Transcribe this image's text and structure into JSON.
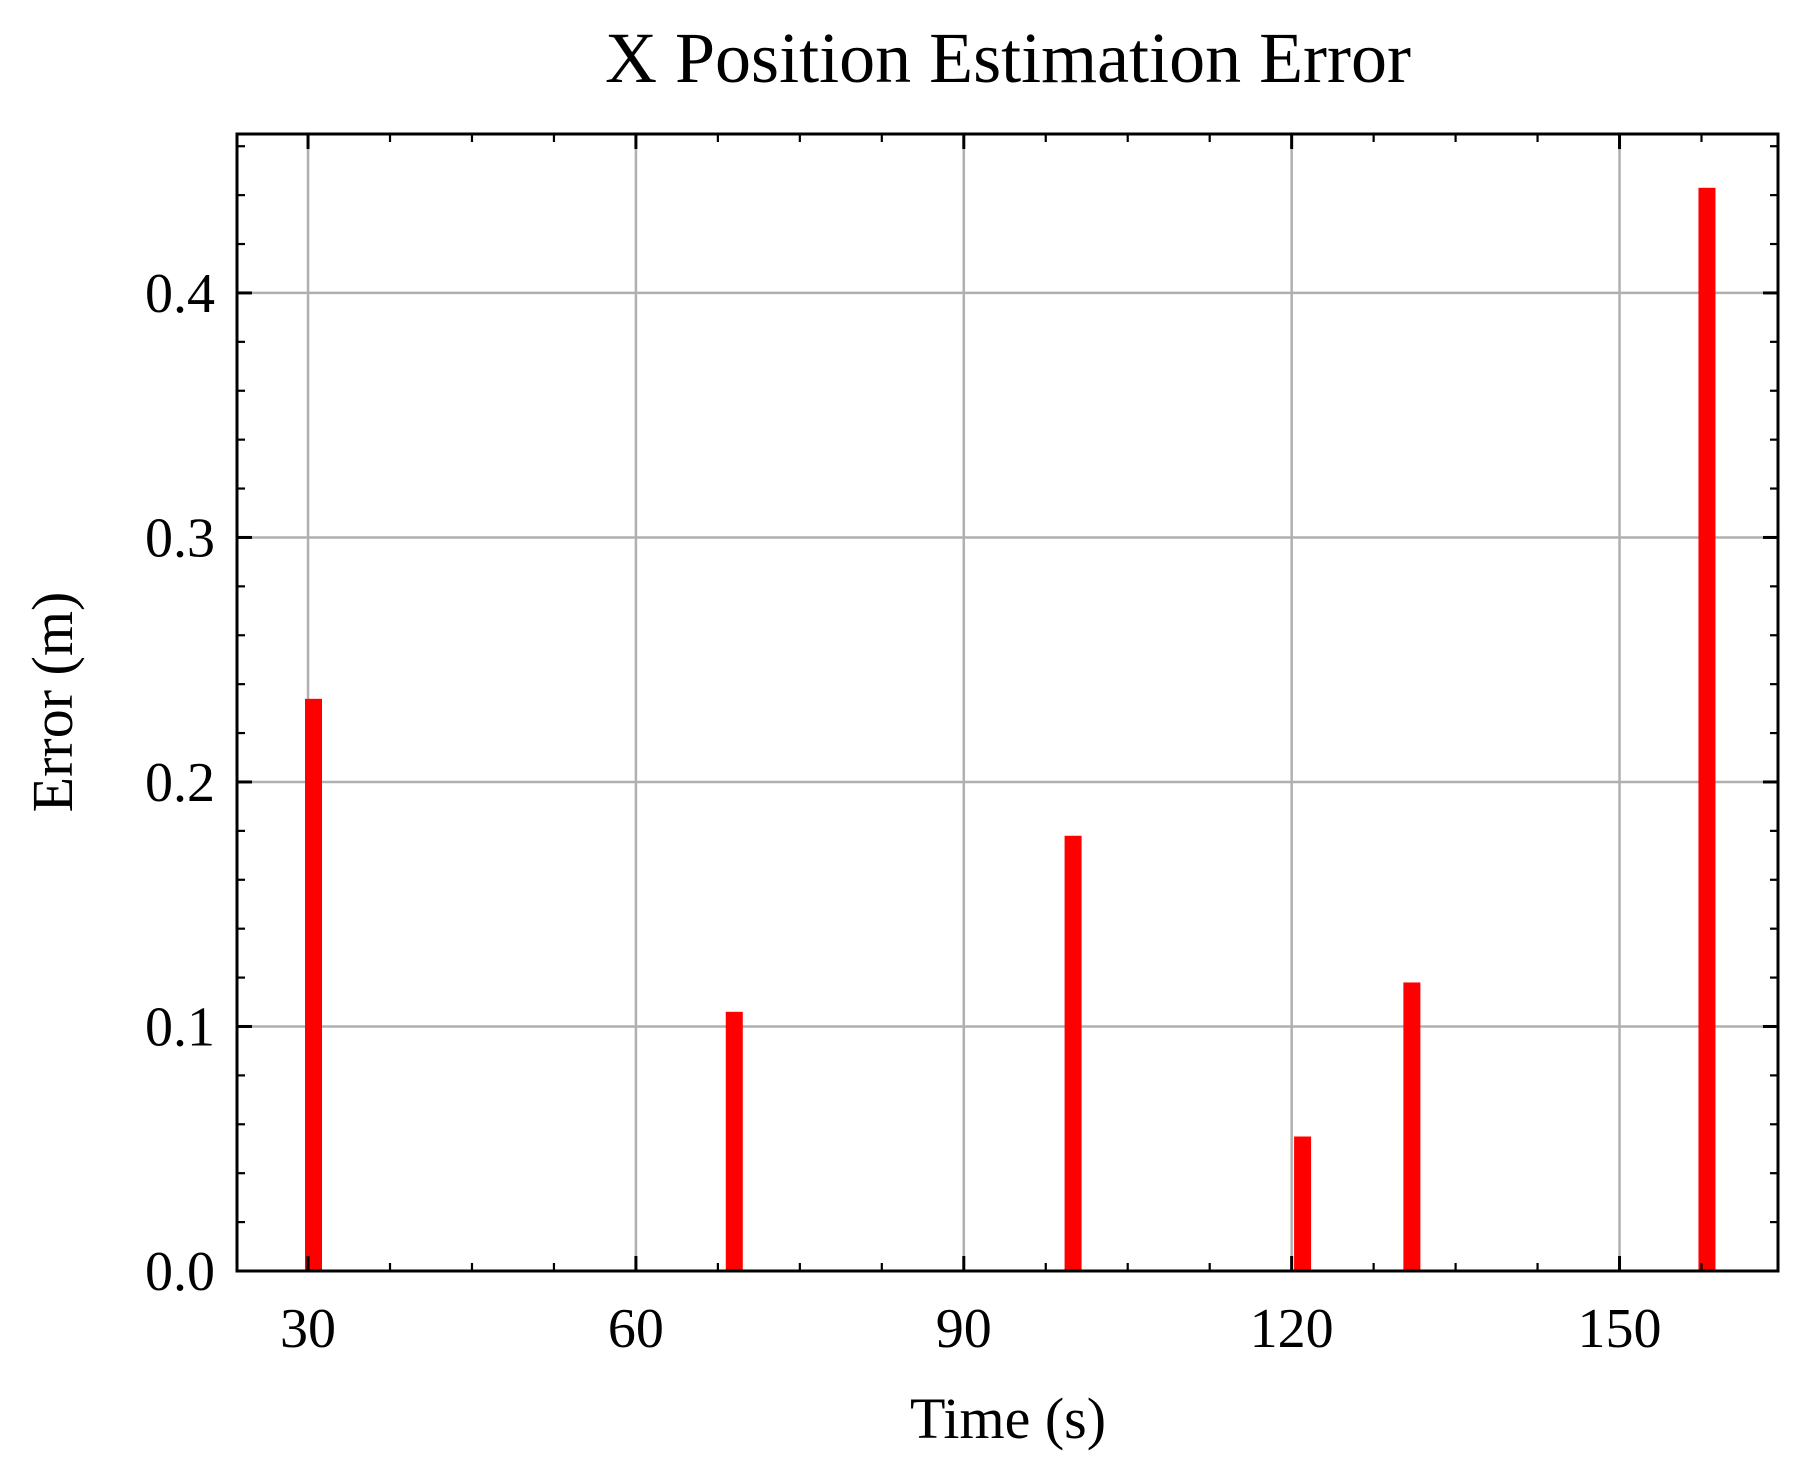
{
  "chart_data": {
    "type": "bar",
    "title": "X Position Estimation Error",
    "xlabel": "Time (s)",
    "ylabel": "Error (m)",
    "x": [
      30.5,
      69.0,
      100.0,
      121.0,
      131.0,
      158.0
    ],
    "values": [
      0.234,
      0.106,
      0.178,
      0.055,
      0.118,
      0.443
    ],
    "xlim": [
      23.5,
      164.5
    ],
    "ylim": [
      0,
      0.465
    ],
    "xticks": [
      30,
      60,
      90,
      120,
      150
    ],
    "xtick_labels": [
      "30",
      "60",
      "90",
      "120",
      "150"
    ],
    "yticks": [
      0.0,
      0.1,
      0.2,
      0.3,
      0.4
    ],
    "ytick_labels": [
      "0.0",
      "0.1",
      "0.2",
      "0.3",
      "0.4"
    ],
    "bar_color": "#ff0000",
    "grid": true,
    "legend": null
  }
}
